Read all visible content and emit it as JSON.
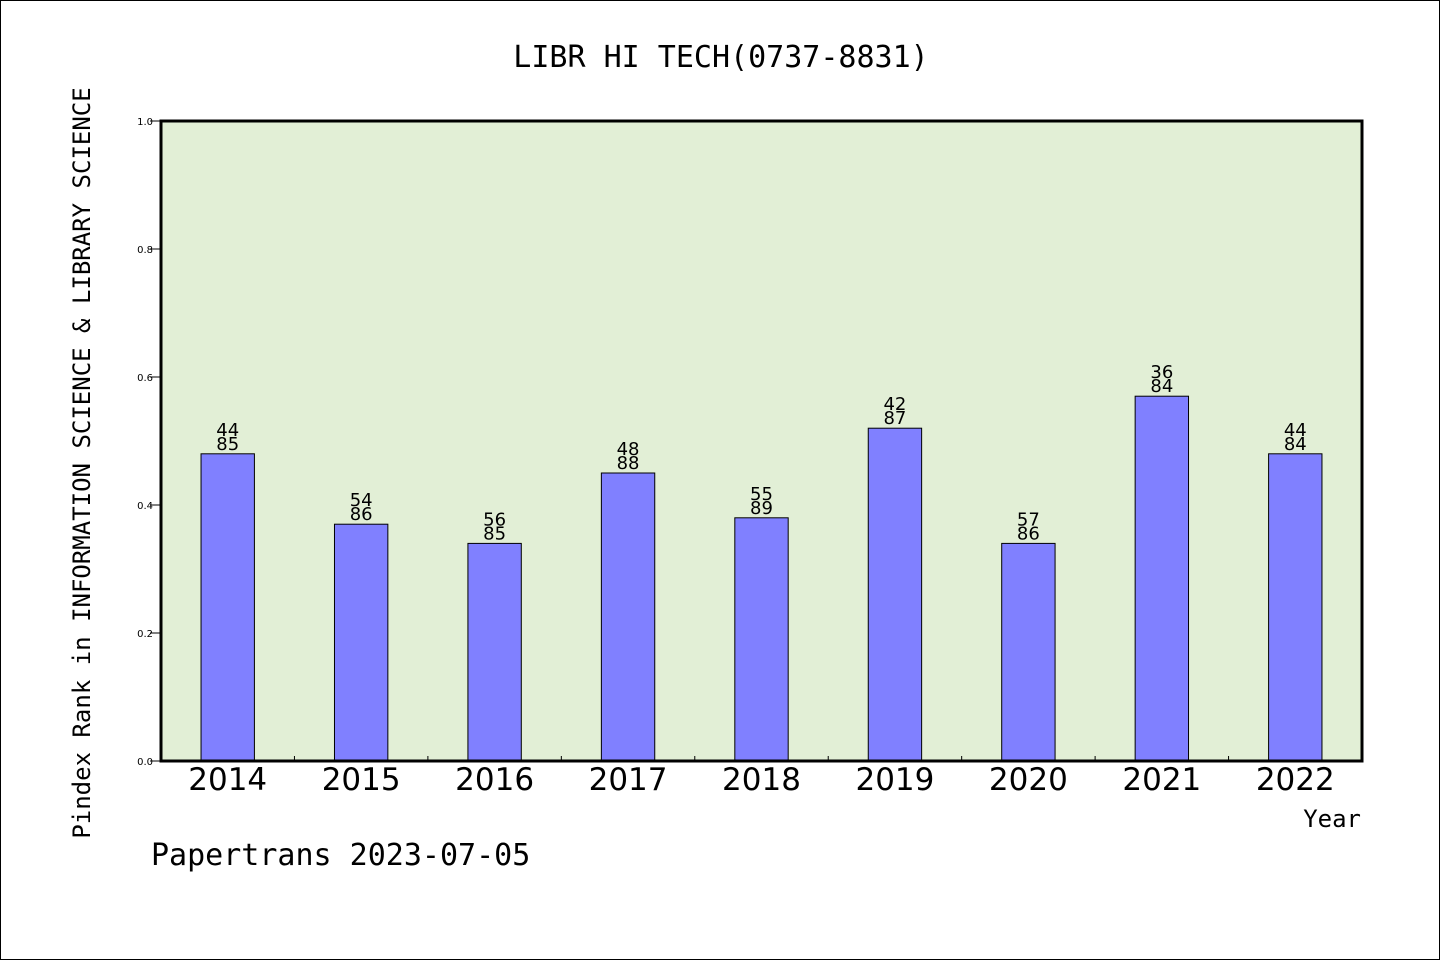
{
  "chart_data": {
    "type": "bar",
    "title": "LIBR HI TECH(0737-8831)",
    "xlabel": "Year",
    "ylabel": "Pindex Rank in INFORMATION SCIENCE & LIBRARY SCIENCE",
    "categories": [
      "2014",
      "2015",
      "2016",
      "2017",
      "2018",
      "2019",
      "2020",
      "2021",
      "2022"
    ],
    "values": [
      0.48,
      0.37,
      0.34,
      0.45,
      0.38,
      0.52,
      0.34,
      0.57,
      0.48
    ],
    "bar_labels": [
      [
        "44",
        "85"
      ],
      [
        "54",
        "86"
      ],
      [
        "56",
        "85"
      ],
      [
        "48",
        "88"
      ],
      [
        "55",
        "89"
      ],
      [
        "42",
        "87"
      ],
      [
        "57",
        "86"
      ],
      [
        "36",
        "84"
      ],
      [
        "44",
        "84"
      ]
    ],
    "ylim": [
      0,
      1.0
    ],
    "yticks": [
      "0.0",
      "0.2",
      "0.4",
      "0.6",
      "0.8",
      "1.0"
    ],
    "grid": false,
    "colors": {
      "bar": "#8080ff",
      "plot_background": "#e2efd6",
      "axes": "#000000"
    }
  },
  "footer": {
    "credit": "Papertrans 2023-07-05"
  }
}
